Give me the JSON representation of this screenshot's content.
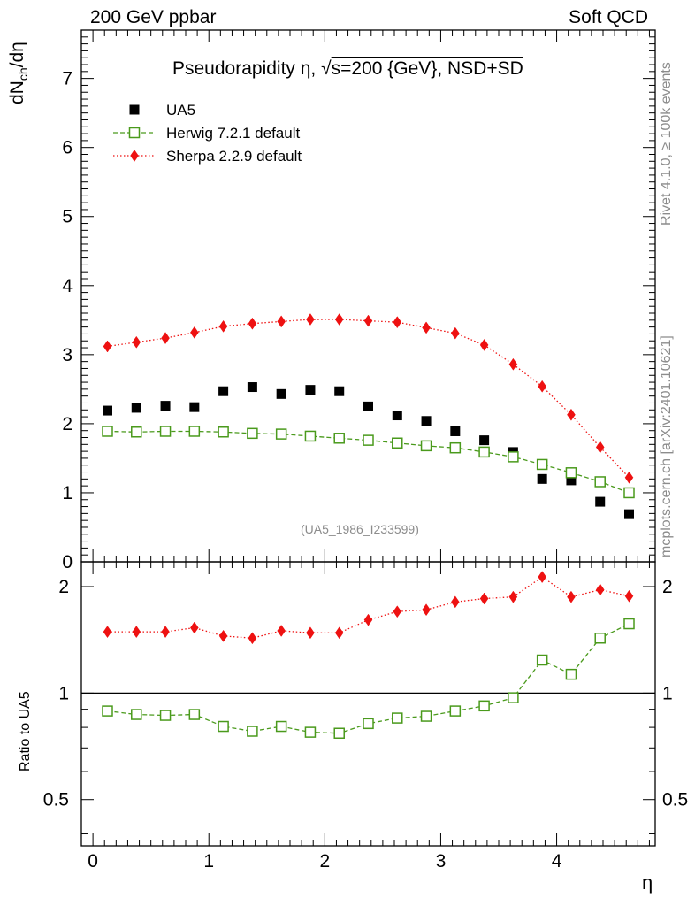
{
  "header": {
    "left_title": "200 GeV ppbar",
    "right_title": "Soft QCD"
  },
  "side_text": {
    "rivet": "Rivet 4.1.0, ≥ 100k events",
    "mcplots": "mcplots.cern.ch [arXiv:2401.10621]"
  },
  "chart_data": [
    {
      "type": "scatter",
      "title": "Pseudorapidity η, √s=200 {GeV}, NSD+SD",
      "title_parts": {
        "pre": "Pseudorapidity η, ",
        "sqrt": "√",
        "post": "s=200 {GeV}, NSD+SD"
      },
      "ylabel": "dNch/dη",
      "ylabel_parts": {
        "main": "dN",
        "sub": "ch",
        "tail": "/dη"
      },
      "xlabel": "η",
      "xlim": [
        -0.1,
        4.85
      ],
      "ylim": [
        0,
        7.7
      ],
      "yticks": [
        0,
        1,
        2,
        3,
        4,
        5,
        6,
        7
      ],
      "xticks": [
        0,
        1,
        2,
        3,
        4
      ],
      "watermark": "(UA5_1986_I233599)",
      "x": [
        0.125,
        0.375,
        0.625,
        0.875,
        1.125,
        1.375,
        1.625,
        1.875,
        2.125,
        2.375,
        2.625,
        2.875,
        3.125,
        3.375,
        3.625,
        3.875,
        4.125,
        4.375,
        4.625
      ],
      "legend_position": "top-left",
      "series": [
        {
          "name": "UA5",
          "style": "data",
          "color": "#000000",
          "values": [
            2.19,
            2.23,
            2.26,
            2.24,
            2.47,
            2.53,
            2.43,
            2.49,
            2.47,
            2.25,
            2.12,
            2.04,
            1.89,
            1.76,
            1.59,
            1.2,
            1.18,
            0.87,
            0.69
          ]
        },
        {
          "name": "Herwig 7.2.1 default",
          "style": "dashed-open-square",
          "color": "#4a9a1c",
          "values": [
            1.89,
            1.88,
            1.89,
            1.89,
            1.88,
            1.86,
            1.85,
            1.82,
            1.79,
            1.76,
            1.72,
            1.68,
            1.65,
            1.59,
            1.52,
            1.41,
            1.29,
            1.16,
            1.0
          ]
        },
        {
          "name": "Sherpa 2.2.9 default",
          "style": "dotted-filled-diamond",
          "color": "#ee1111",
          "values": [
            3.12,
            3.18,
            3.24,
            3.32,
            3.41,
            3.45,
            3.48,
            3.51,
            3.51,
            3.49,
            3.47,
            3.39,
            3.31,
            3.14,
            2.86,
            2.54,
            2.13,
            1.66,
            1.22
          ]
        }
      ]
    },
    {
      "type": "line",
      "ylabel": "Ratio to UA5",
      "xlabel": "η",
      "xlim": [
        -0.1,
        4.85
      ],
      "ylim": [
        0.37,
        2.35
      ],
      "yscale": "log",
      "yticks": [
        0.5,
        1,
        2
      ],
      "ytick_labels": [
        "0.5",
        "1",
        "2"
      ],
      "reference_line": 1,
      "x": [
        0.125,
        0.375,
        0.625,
        0.875,
        1.125,
        1.375,
        1.625,
        1.875,
        2.125,
        2.375,
        2.625,
        2.875,
        3.125,
        3.375,
        3.625,
        3.875,
        4.125,
        4.375,
        4.625
      ],
      "series": [
        {
          "name": "Herwig 7.2.1 default",
          "color": "#4a9a1c",
          "values": [
            0.89,
            0.87,
            0.865,
            0.87,
            0.805,
            0.78,
            0.805,
            0.775,
            0.77,
            0.82,
            0.85,
            0.86,
            0.89,
            0.92,
            0.97,
            1.24,
            1.13,
            1.43,
            1.57
          ]
        },
        {
          "name": "Sherpa 2.2.9 default",
          "color": "#ee1111",
          "values": [
            1.49,
            1.49,
            1.49,
            1.53,
            1.45,
            1.43,
            1.5,
            1.48,
            1.48,
            1.61,
            1.7,
            1.72,
            1.81,
            1.85,
            1.87,
            2.13,
            1.87,
            1.96,
            1.88
          ]
        }
      ]
    }
  ]
}
